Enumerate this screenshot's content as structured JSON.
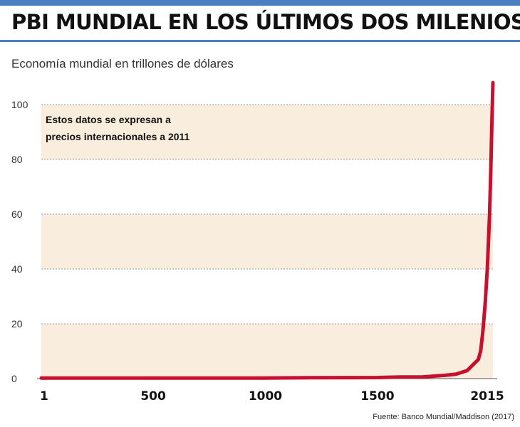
{
  "header": {
    "title": "PBI MUNDIAL EN LOS ÚLTIMOS DOS MILENIOS",
    "subtitle": "Economía mundial en trillones de dólares"
  },
  "footer": {
    "source": "Fuente: Banco Mundial/Maddison (2017)"
  },
  "colors": {
    "line": "#c8102e",
    "band": "#f9eedd",
    "grid": "#999999",
    "accent": "#4a7fc1"
  },
  "chart_data": {
    "type": "line",
    "title": "PBI MUNDIAL EN LOS ÚLTIMOS DOS MILENIOS",
    "ylabel": "Economía mundial en trillones de dólares",
    "xlabel": "",
    "xlim": [
      1,
      2015
    ],
    "ylim": [
      0,
      110
    ],
    "x_ticks": [
      1,
      500,
      1000,
      1500,
      2015
    ],
    "x_tick_labels": [
      "1",
      "500",
      "1000",
      "1500",
      "2015"
    ],
    "y_ticks": [
      0,
      20,
      40,
      60,
      80,
      100
    ],
    "y_tick_labels": [
      "0",
      "20",
      "40",
      "60",
      "80",
      "100"
    ],
    "grid": true,
    "annotation": [
      "Estos datos se expresan a",
      "precios internacionales a 2011"
    ],
    "series": [
      {
        "name": "PBI mundial",
        "x": [
          1,
          500,
          1000,
          1200,
          1500,
          1600,
          1700,
          1800,
          1850,
          1900,
          1913,
          1950,
          1960,
          1970,
          1980,
          1990,
          2000,
          2005,
          2010,
          2015
        ],
        "y": [
          0.2,
          0.2,
          0.2,
          0.3,
          0.4,
          0.6,
          0.6,
          1.2,
          1.6,
          2.9,
          4.0,
          7.0,
          10.0,
          17.0,
          27.0,
          40.0,
          60.0,
          75.0,
          92.0,
          108.0
        ]
      }
    ]
  }
}
